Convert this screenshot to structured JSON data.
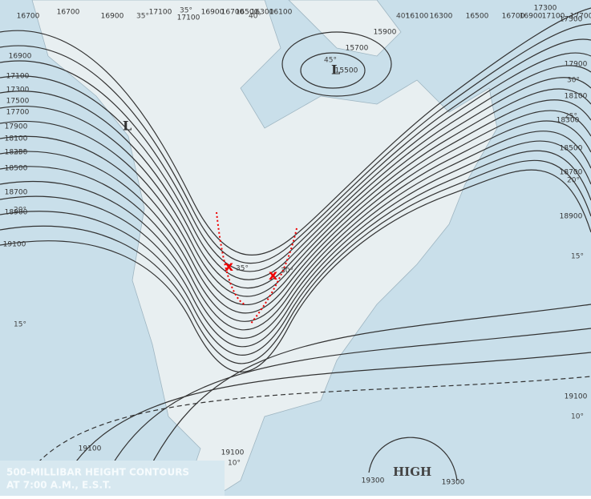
{
  "caption": {
    "line1": "500-MILLIBAR HEIGHT CONTOURS",
    "line2": "AT 7:00 A.M., E.S.T."
  },
  "pressure_centers": [
    "L",
    "L",
    "HIGH"
  ],
  "crosses": [
    "x",
    "x"
  ],
  "contour_labels": [
    "16700",
    "16700",
    "16900",
    "17100",
    "17100",
    "16900",
    "16700",
    "16500",
    "16300",
    "16100",
    "15900",
    "15700",
    "15500",
    "16100",
    "16300",
    "16500",
    "16700",
    "16900",
    "17100",
    "17300",
    "17500",
    "17700",
    "17900",
    "18100",
    "18300",
    "18500",
    "18700",
    "18900",
    "16900",
    "17100",
    "17300",
    "17500",
    "17700",
    "17900",
    "18100",
    "18300",
    "18500",
    "18700",
    "18900",
    "19100",
    "19100",
    "19100",
    "19300",
    "19300",
    "19100"
  ],
  "temperature_labels": [
    "35°",
    "35°",
    "40°",
    "45°",
    "40°",
    "30°",
    "25°",
    "20°",
    "15°",
    "15°",
    "10°",
    "10°",
    "35°",
    "30°",
    "20°",
    "25°"
  ]
}
